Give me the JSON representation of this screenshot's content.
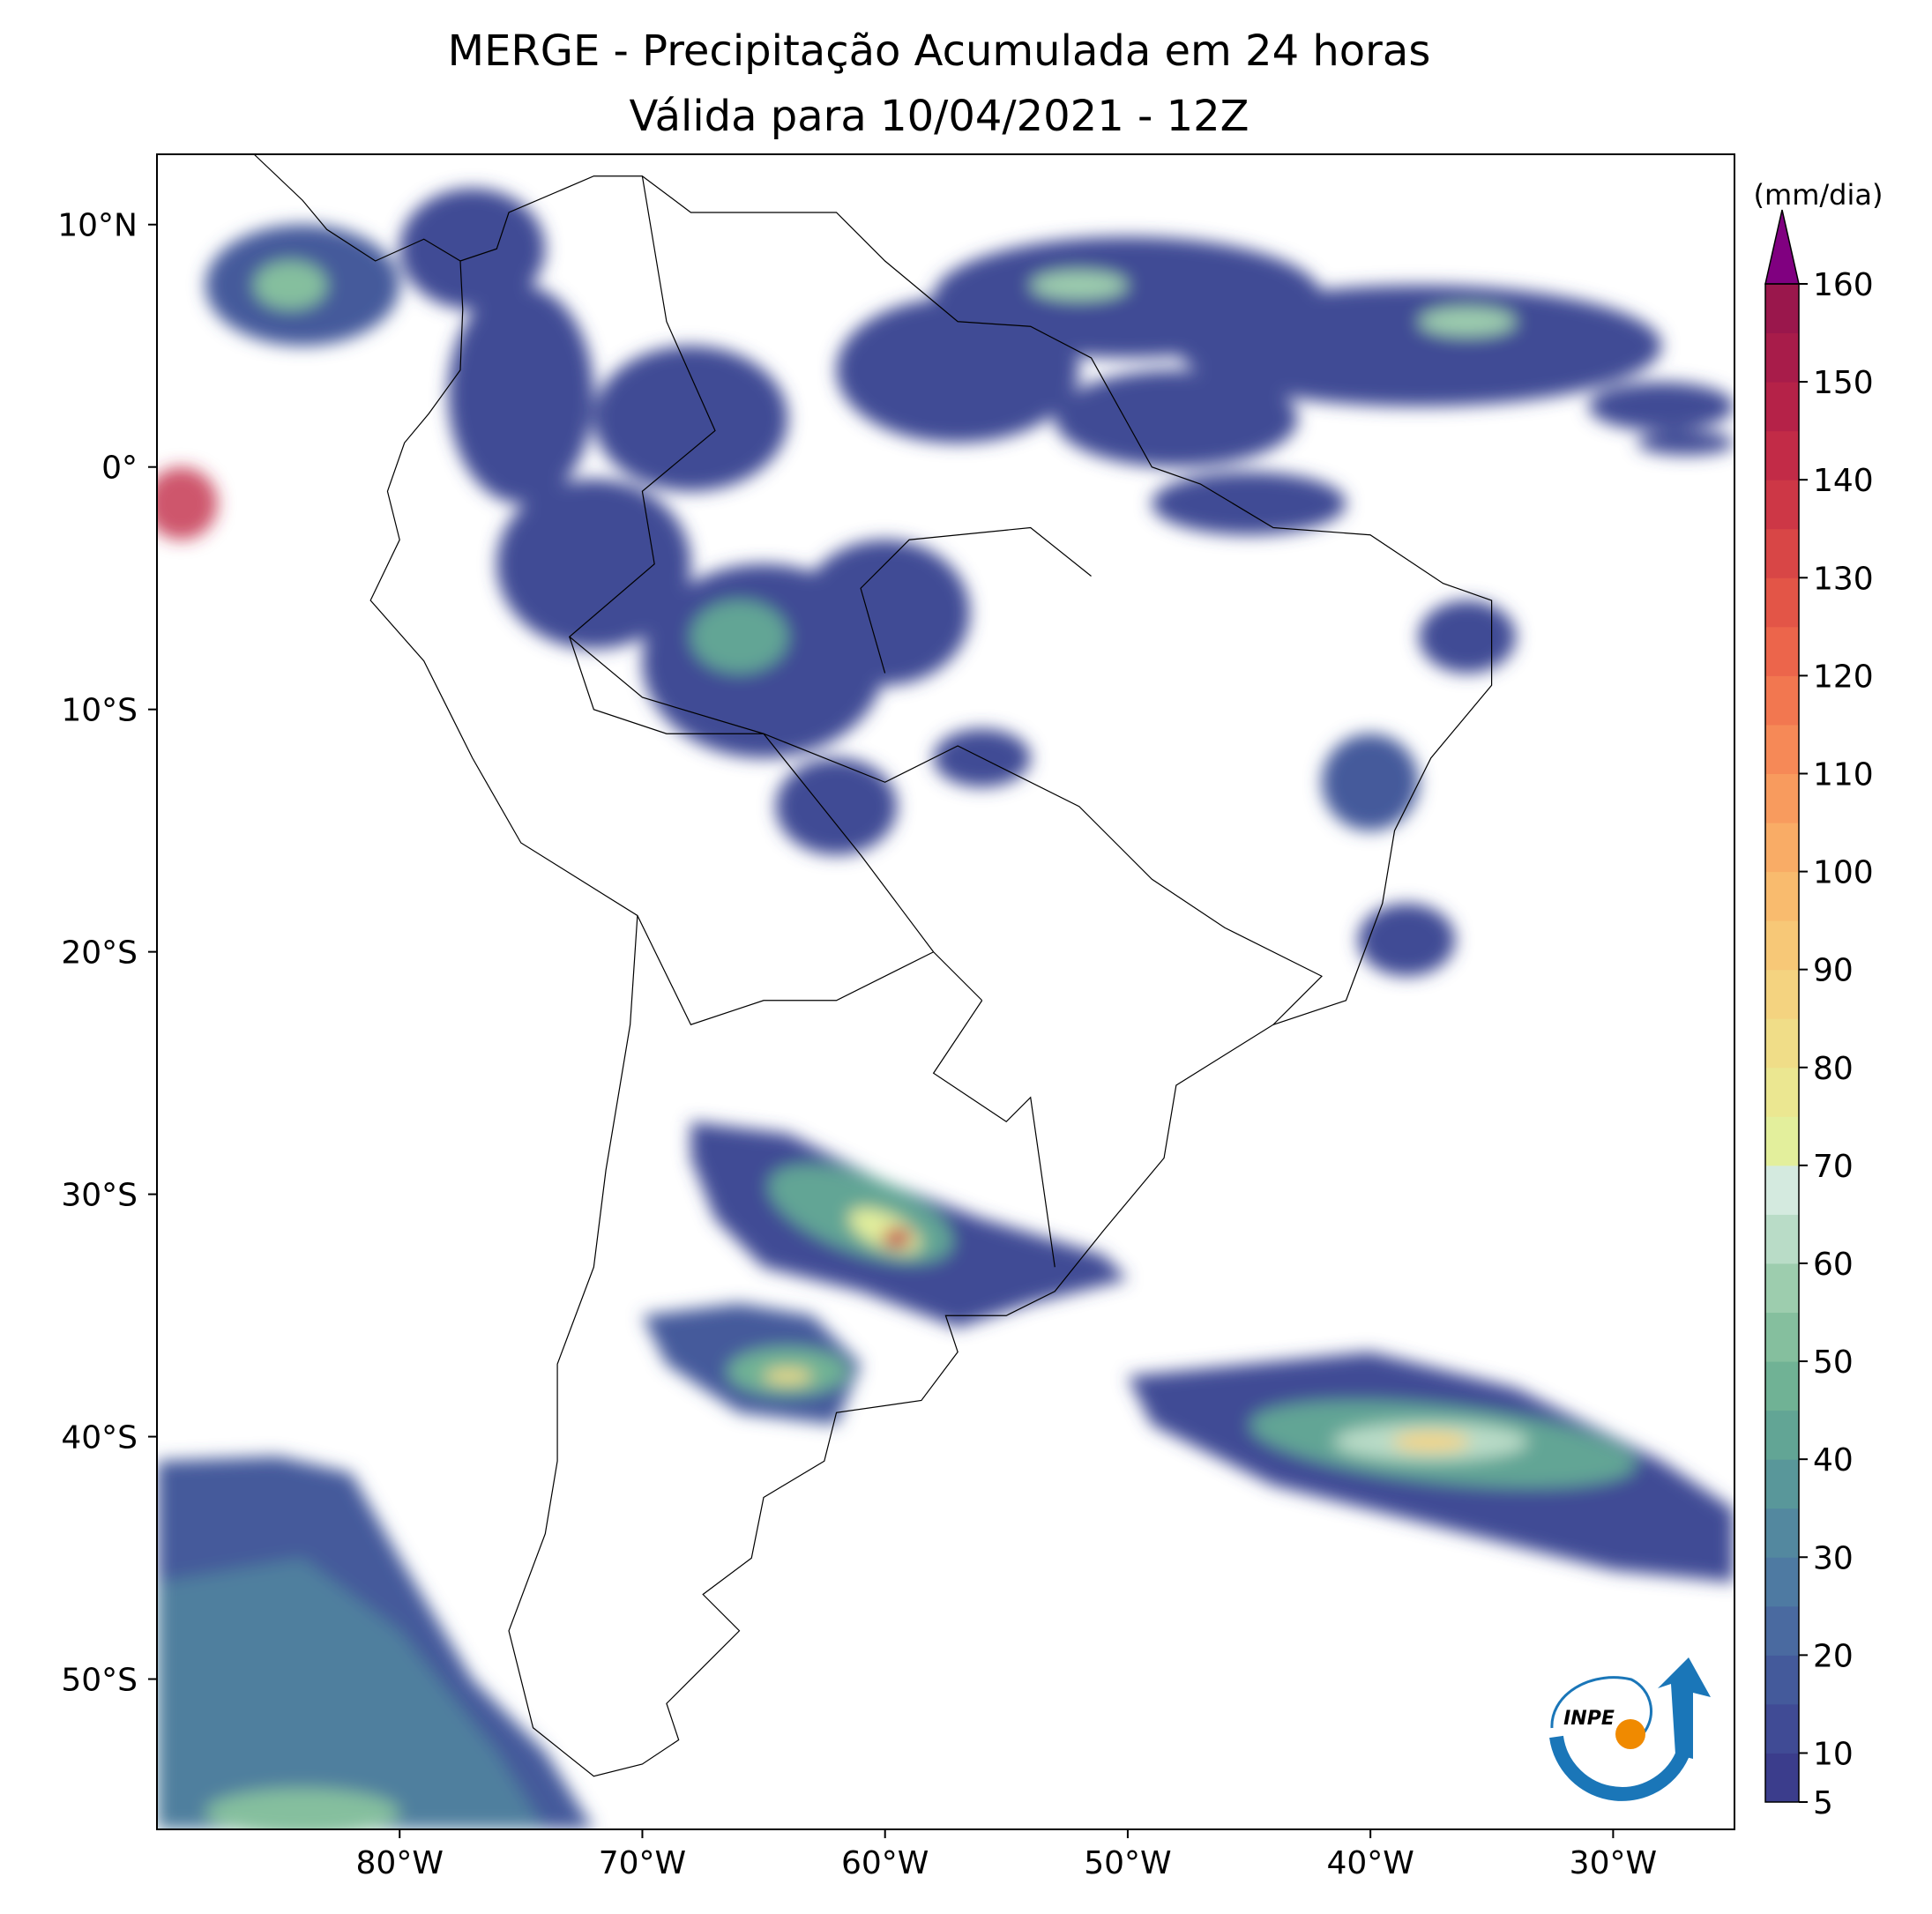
{
  "title": "MERGE - Precipitação Acumulada em 24 horas",
  "subtitle": "Válida para 10/04/2021 - 12Z",
  "map": {
    "lonlim": [
      -90,
      -25
    ],
    "latlim": [
      -56.2,
      12.9
    ],
    "xticks": [
      {
        "value": -80,
        "label": "80°W"
      },
      {
        "value": -70,
        "label": "70°W"
      },
      {
        "value": -60,
        "label": "60°W"
      },
      {
        "value": -50,
        "label": "50°W"
      },
      {
        "value": -40,
        "label": "40°W"
      },
      {
        "value": -30,
        "label": "30°W"
      }
    ],
    "yticks": [
      {
        "value": 10,
        "label": "10°N"
      },
      {
        "value": 0,
        "label": "0°"
      },
      {
        "value": -10,
        "label": "10°S"
      },
      {
        "value": -20,
        "label": "20°S"
      },
      {
        "value": -30,
        "label": "30°S"
      },
      {
        "value": -40,
        "label": "40°S"
      },
      {
        "value": -50,
        "label": "50°S"
      }
    ]
  },
  "colorbar": {
    "label": "(mm/dia)",
    "levels": [
      5,
      10,
      15,
      20,
      25,
      30,
      35,
      40,
      45,
      50,
      55,
      60,
      65,
      70,
      75,
      80,
      85,
      90,
      95,
      100,
      105,
      110,
      115,
      120,
      125,
      130,
      135,
      140,
      145,
      150,
      155,
      160
    ],
    "ticks": [
      5,
      10,
      20,
      30,
      40,
      50,
      60,
      70,
      80,
      90,
      100,
      110,
      120,
      130,
      140,
      150,
      160
    ],
    "colors": [
      "#3b3d8c",
      "#404b95",
      "#445a9b",
      "#4a6aa0",
      "#4e7aa2",
      "#53889f",
      "#59979a",
      "#62a595",
      "#70b295",
      "#85bf9e",
      "#9dcdae",
      "#b9dcc7",
      "#d4eadf",
      "#e3ef9c",
      "#ebe791",
      "#f0dd88",
      "#f4d380",
      "#f7c877",
      "#f9bb6e",
      "#f9ac66",
      "#f89b5e",
      "#f68957",
      "#f27750",
      "#ec654b",
      "#e35547",
      "#d84646",
      "#cd3746",
      "#c22b47",
      "#b52248",
      "#a81c4a",
      "#9a174c"
    ],
    "extend_color": "#800080"
  },
  "logo": "INPE"
}
